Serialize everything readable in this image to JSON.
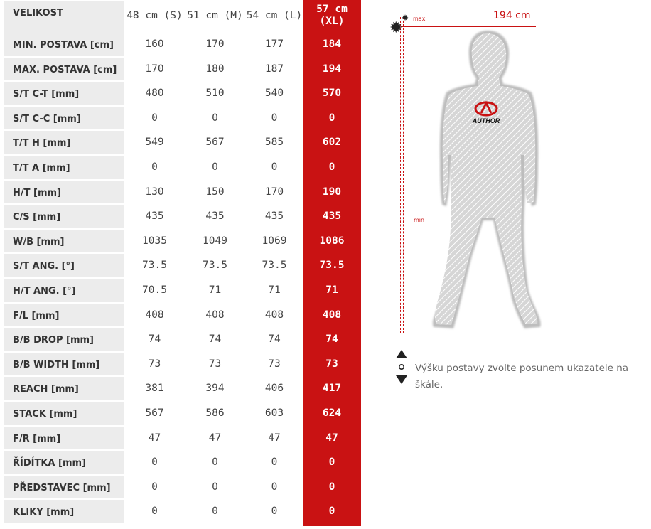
{
  "table": {
    "header_label": "VELIKOST",
    "sizes": [
      "48 cm (S)",
      "51 cm (M)",
      "54 cm (L)",
      "57 cm (XL)"
    ],
    "highlight_color": "#c91213",
    "rows": [
      {
        "label": "MIN. POSTAVA [cm]",
        "values": [
          "160",
          "170",
          "177",
          "184"
        ]
      },
      {
        "label": "MAX. POSTAVA [cm]",
        "values": [
          "170",
          "180",
          "187",
          "194"
        ]
      },
      {
        "label": "S/T C-T [mm]",
        "values": [
          "480",
          "510",
          "540",
          "570"
        ]
      },
      {
        "label": "S/T C-C [mm]",
        "values": [
          "0",
          "0",
          "0",
          "0"
        ]
      },
      {
        "label": "T/T H [mm]",
        "values": [
          "549",
          "567",
          "585",
          "602"
        ]
      },
      {
        "label": "T/T A [mm]",
        "values": [
          "0",
          "0",
          "0",
          "0"
        ]
      },
      {
        "label": "H/T [mm]",
        "values": [
          "130",
          "150",
          "170",
          "190"
        ]
      },
      {
        "label": "C/S [mm]",
        "values": [
          "435",
          "435",
          "435",
          "435"
        ]
      },
      {
        "label": "W/B [mm]",
        "values": [
          "1035",
          "1049",
          "1069",
          "1086"
        ]
      },
      {
        "label": "S/T ANG. [°]",
        "values": [
          "73.5",
          "73.5",
          "73.5",
          "73.5"
        ]
      },
      {
        "label": "H/T ANG. [°]",
        "values": [
          "70.5",
          "71",
          "71",
          "71"
        ]
      },
      {
        "label": "F/L [mm]",
        "values": [
          "408",
          "408",
          "408",
          "408"
        ]
      },
      {
        "label": "B/B DROP [mm]",
        "values": [
          "74",
          "74",
          "74",
          "74"
        ]
      },
      {
        "label": "B/B WIDTH [mm]",
        "values": [
          "73",
          "73",
          "73",
          "73"
        ]
      },
      {
        "label": "REACH [mm]",
        "values": [
          "381",
          "394",
          "406",
          "417"
        ]
      },
      {
        "label": "STACK [mm]",
        "values": [
          "567",
          "586",
          "603",
          "624"
        ]
      },
      {
        "label": "F/R [mm]",
        "values": [
          "47",
          "47",
          "47",
          "47"
        ]
      },
      {
        "label": "ŘÍDÍTKA [mm]",
        "values": [
          "0",
          "0",
          "0",
          "0"
        ]
      },
      {
        "label": "PŘEDSTAVEC [mm]",
        "values": [
          "0",
          "0",
          "0",
          "0"
        ]
      },
      {
        "label": "KLIKY [mm]",
        "values": [
          "0",
          "0",
          "0",
          "0"
        ]
      }
    ]
  },
  "height_selector": {
    "max_label": "max",
    "min_label": "min",
    "selected_height": "194 cm",
    "figure_logo_text": "AUTHOR",
    "handle_icon": "gear-icon",
    "hint_text": "Výšku postavy zvolte posunem ukazatele na škále."
  }
}
